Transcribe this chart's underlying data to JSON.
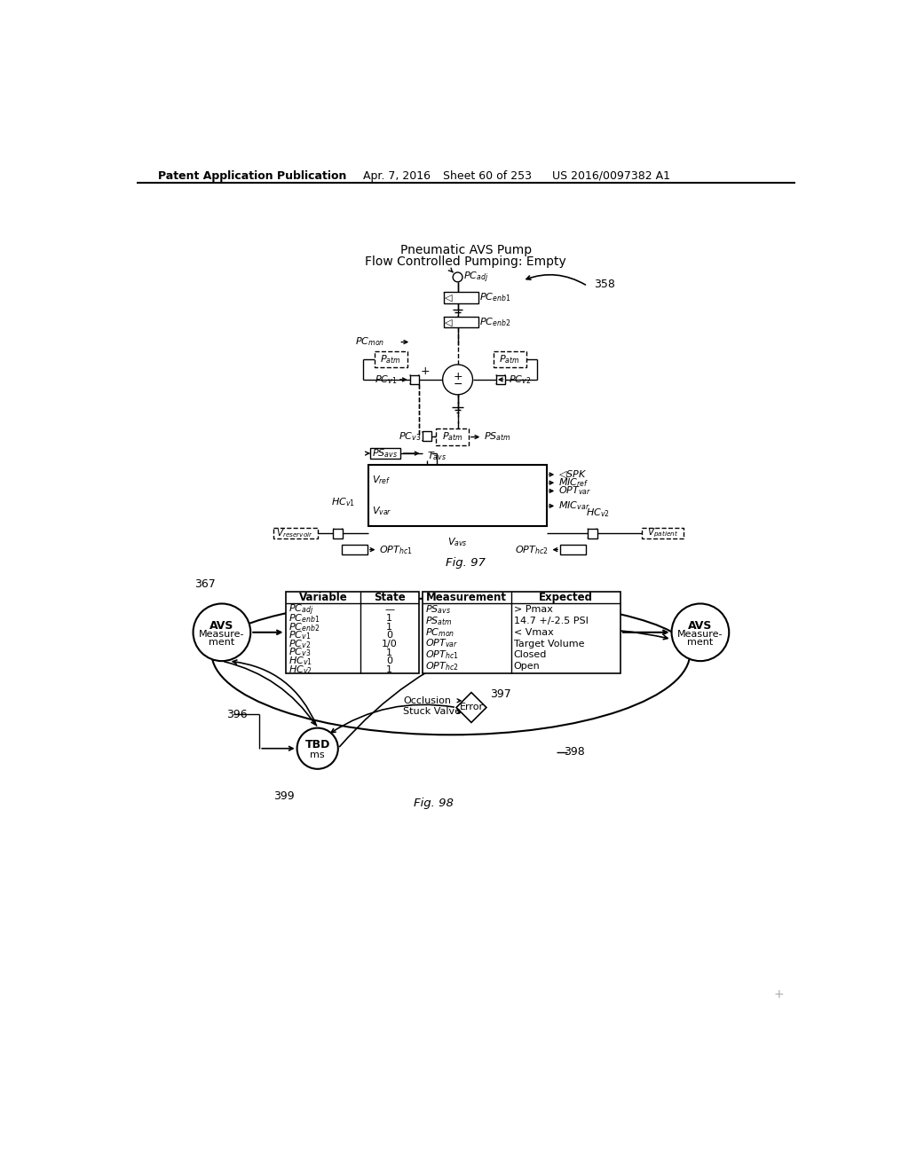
{
  "bg_color": "#ffffff",
  "header_text": "Patent Application Publication",
  "header_date": "Apr. 7, 2016",
  "header_sheet": "Sheet 60 of 253",
  "header_patent": "US 2016/0097382 A1",
  "fig97_title1": "Pneumatic AVS Pump",
  "fig97_title2": "Flow Controlled Pumping: Empty",
  "fig97_caption": "Fig. 97",
  "fig98_caption": "Fig. 98"
}
